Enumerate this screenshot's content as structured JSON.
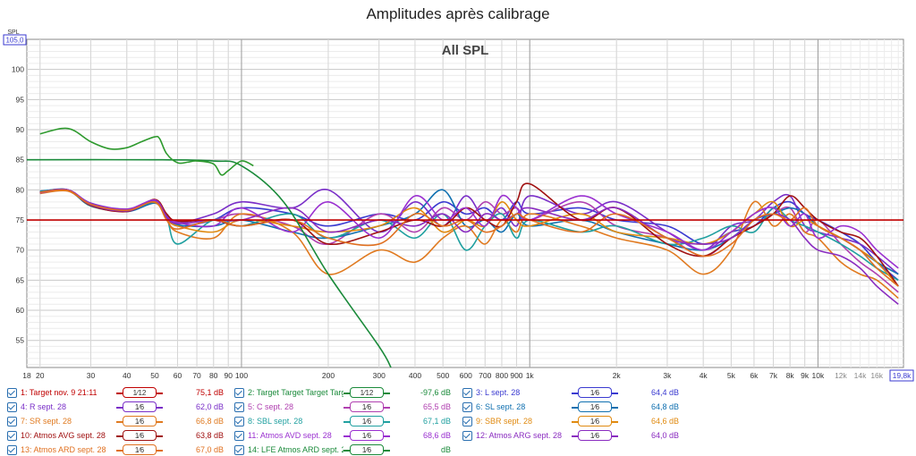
{
  "title": "Amplitudes après calibrage",
  "chart_data": {
    "type": "line",
    "title": "All SPL",
    "ylabel": "SPL",
    "xscale": "log",
    "xlim": [
      18,
      19800
    ],
    "ylim": [
      50.5,
      105
    ],
    "y_top_readout": "105,0",
    "x_right_readout": "19,8k",
    "yticks": [
      55,
      60,
      65,
      70,
      75,
      80,
      85,
      90,
      95,
      100
    ],
    "xticks": [
      {
        "v": 18,
        "t": "18"
      },
      {
        "v": 20,
        "t": "20"
      },
      {
        "v": 30,
        "t": "30"
      },
      {
        "v": 40,
        "t": "40"
      },
      {
        "v": 50,
        "t": "50"
      },
      {
        "v": 60,
        "t": "60"
      },
      {
        "v": 70,
        "t": "70"
      },
      {
        "v": 80,
        "t": "80"
      },
      {
        "v": 90,
        "t": "90"
      },
      {
        "v": 100,
        "t": "100"
      },
      {
        "v": 200,
        "t": "200"
      },
      {
        "v": 300,
        "t": "300"
      },
      {
        "v": 400,
        "t": "400"
      },
      {
        "v": 500,
        "t": "500"
      },
      {
        "v": 600,
        "t": "600"
      },
      {
        "v": 700,
        "t": "700"
      },
      {
        "v": 800,
        "t": "800"
      },
      {
        "v": 900,
        "t": "900"
      },
      {
        "v": 1000,
        "t": "1k"
      },
      {
        "v": 2000,
        "t": "2k"
      },
      {
        "v": 3000,
        "t": "3k"
      },
      {
        "v": 4000,
        "t": "4k"
      },
      {
        "v": 5000,
        "t": "5k"
      },
      {
        "v": 6000,
        "t": "6k"
      },
      {
        "v": 7000,
        "t": "7k"
      },
      {
        "v": 8000,
        "t": "8k"
      },
      {
        "v": 9000,
        "t": "9k"
      },
      {
        "v": 10000,
        "t": "10k"
      },
      {
        "v": 12000,
        "t": "12k"
      },
      {
        "v": 14000,
        "t": "14k"
      },
      {
        "v": 16000,
        "t": "16k"
      }
    ],
    "series": [
      {
        "name": "1: Target nov. 9 21:11",
        "color": "#c00000",
        "x": [
          18,
          19800
        ],
        "y": [
          75,
          75
        ]
      },
      {
        "name": "2: Target Target Target Target 1",
        "color": "#1a8a3a",
        "x": [
          18,
          50,
          80,
          100,
          140,
          200,
          300,
          330
        ],
        "y": [
          85,
          85,
          84.8,
          84,
          78,
          66,
          54,
          50.5
        ]
      },
      {
        "name": "14: LFE Atmos ARD sept. 28",
        "color": "#2e9a2e",
        "x": [
          20,
          25,
          30,
          35,
          40,
          45,
          50,
          52,
          55,
          60,
          65,
          70,
          80,
          85,
          90,
          100,
          110
        ],
        "y": [
          89.3,
          90.2,
          88,
          86.8,
          87,
          88,
          88.8,
          88.5,
          86,
          84.5,
          84.6,
          84.8,
          84.3,
          82.5,
          83.2,
          84.8,
          84
        ]
      },
      {
        "name": "3: L sept. 28",
        "color": "#3a3ad0",
        "x": [
          20,
          25,
          30,
          40,
          50,
          55,
          60,
          80,
          100,
          150,
          200,
          300,
          400,
          500,
          600,
          700,
          800,
          900,
          1000,
          1500,
          2000,
          3000,
          4000,
          5000,
          6000,
          7000,
          8000,
          9000,
          10000,
          12000,
          14000,
          16000,
          19000
        ],
        "y": [
          79.7,
          80,
          77.5,
          76.5,
          78,
          76,
          74,
          75,
          77,
          76,
          74,
          76,
          75,
          78,
          76,
          77,
          75,
          78,
          76,
          77,
          75,
          74,
          71,
          73,
          74,
          77,
          78,
          76,
          75,
          73,
          71,
          68,
          65
        ]
      },
      {
        "name": "4: R sept. 28",
        "color": "#7a2fc8",
        "x": [
          20,
          25,
          30,
          40,
          50,
          55,
          60,
          80,
          100,
          150,
          200,
          300,
          400,
          500,
          600,
          700,
          800,
          900,
          1000,
          1500,
          2000,
          3000,
          4000,
          5000,
          6000,
          7000,
          8000,
          9000,
          10000,
          12000,
          14000,
          16000,
          19000
        ],
        "y": [
          79.5,
          80,
          77.8,
          76.8,
          78.2,
          76,
          74.5,
          76,
          78,
          77,
          80,
          73,
          78,
          74,
          79,
          75,
          77,
          74,
          79,
          76,
          78,
          73,
          70,
          74,
          75,
          78,
          79,
          74,
          73,
          72,
          71,
          69,
          66
        ]
      },
      {
        "name": "5: C sept. 28",
        "color": "#b040b0",
        "x": [
          20,
          25,
          30,
          40,
          50,
          55,
          60,
          80,
          100,
          150,
          200,
          300,
          400,
          500,
          600,
          700,
          800,
          900,
          1000,
          1500,
          2000,
          3000,
          4000,
          5000,
          6000,
          7000,
          8000,
          9000,
          10000,
          12000,
          14000,
          16000,
          19000
        ],
        "y": [
          79.6,
          80,
          77.6,
          76.6,
          78,
          75.5,
          74.5,
          75,
          76,
          74,
          71,
          76,
          73,
          77,
          75,
          78,
          76,
          77,
          75,
          78,
          74,
          72,
          69,
          72,
          74,
          76,
          77,
          73,
          75,
          71,
          68,
          66,
          63
        ]
      },
      {
        "name": "6: SL sept. 28",
        "color": "#1070b0",
        "x": [
          20,
          25,
          30,
          40,
          50,
          55,
          60,
          80,
          100,
          150,
          200,
          300,
          400,
          500,
          600,
          700,
          800,
          900,
          1000,
          1500,
          2000,
          3000,
          4000,
          5000,
          6000,
          7000,
          8000,
          9000,
          10000,
          12000,
          14000,
          16000,
          19000
        ],
        "y": [
          79.8,
          79.9,
          77.4,
          76.4,
          77.8,
          75.8,
          74.2,
          74,
          75,
          73,
          72,
          74,
          76,
          80,
          74,
          75,
          73,
          76,
          74,
          75,
          73,
          71,
          70,
          72,
          75,
          76,
          77,
          76,
          74,
          72,
          70,
          68,
          66
        ]
      },
      {
        "name": "7: SR sept. 28",
        "color": "#e07a20",
        "x": [
          20,
          25,
          30,
          40,
          50,
          55,
          60,
          80,
          100,
          150,
          200,
          300,
          400,
          500,
          600,
          700,
          800,
          900,
          1000,
          1500,
          2000,
          3000,
          4000,
          5000,
          6000,
          7000,
          8000,
          9000,
          10000,
          12000,
          14000,
          16000,
          19000
        ],
        "y": [
          79.4,
          79.8,
          77.5,
          76.7,
          77.9,
          75,
          73,
          72,
          76,
          73,
          66,
          70,
          68,
          72,
          74,
          71,
          75,
          73,
          76,
          74,
          72,
          70,
          66,
          70,
          78,
          74,
          76,
          73,
          72,
          68,
          66,
          65,
          62
        ]
      },
      {
        "name": "8: SBL sept. 28",
        "color": "#20a0a0",
        "x": [
          20,
          25,
          30,
          40,
          50,
          55,
          60,
          80,
          100,
          150,
          200,
          300,
          400,
          500,
          600,
          700,
          800,
          900,
          1000,
          1500,
          2000,
          3000,
          4000,
          5000,
          6000,
          7000,
          8000,
          9000,
          10000,
          12000,
          14000,
          16000,
          19000
        ],
        "y": [
          79.7,
          80,
          77.3,
          76.5,
          78,
          75.5,
          71,
          75,
          74,
          76,
          72,
          75,
          72,
          76,
          70,
          74,
          76,
          72,
          75,
          73,
          74,
          71,
          72,
          74,
          73,
          77,
          75,
          74,
          73,
          71,
          69,
          67,
          65
        ]
      },
      {
        "name": "9: SBR sept. 28",
        "color": "#e08a10",
        "x": [
          20,
          25,
          30,
          40,
          50,
          55,
          60,
          80,
          100,
          150,
          200,
          300,
          400,
          500,
          600,
          700,
          800,
          900,
          1000,
          1500,
          2000,
          3000,
          4000,
          5000,
          6000,
          7000,
          8000,
          9000,
          10000,
          12000,
          14000,
          16000,
          19000
        ],
        "y": [
          79.5,
          79.9,
          77.6,
          76.6,
          78.1,
          75.2,
          74,
          73,
          75,
          74,
          73,
          74,
          77,
          73,
          75,
          74,
          78,
          75,
          74,
          76,
          73,
          72,
          71,
          73,
          76,
          78,
          74,
          75,
          74,
          72,
          70,
          68,
          64
        ]
      },
      {
        "name": "10: Atmos AVG sept. 28",
        "color": "#a01010",
        "x": [
          20,
          25,
          30,
          40,
          50,
          55,
          60,
          80,
          100,
          150,
          200,
          300,
          400,
          500,
          600,
          700,
          800,
          900,
          1000,
          1500,
          2000,
          3000,
          4000,
          5000,
          6000,
          7000,
          8000,
          9000,
          10000,
          12000,
          14000,
          16000,
          19000
        ],
        "y": [
          79.6,
          80,
          77.4,
          76.4,
          78.4,
          76,
          74.8,
          75,
          74,
          75,
          71,
          73,
          75,
          74,
          77,
          75,
          74,
          78,
          81,
          75,
          77,
          71,
          69,
          72,
          74,
          76,
          79,
          77,
          75,
          73,
          72,
          69,
          64
        ]
      },
      {
        "name": "11: Atmos AVD sept. 28",
        "color": "#9a30d0",
        "x": [
          20,
          25,
          30,
          40,
          50,
          55,
          60,
          80,
          100,
          150,
          200,
          300,
          400,
          500,
          600,
          700,
          800,
          900,
          1000,
          1500,
          2000,
          3000,
          4000,
          5000,
          6000,
          7000,
          8000,
          9000,
          10000,
          12000,
          14000,
          16000,
          19000
        ],
        "y": [
          79.5,
          80,
          77.7,
          76.8,
          78.3,
          75.6,
          74.6,
          74,
          77,
          73,
          78,
          72,
          79,
          75,
          77,
          74,
          79,
          77,
          75,
          79,
          76,
          73,
          70,
          73,
          76,
          77,
          74,
          76,
          72,
          74,
          73,
          70,
          67
        ]
      },
      {
        "name": "12: Atmos ARG sept. 28",
        "color": "#8a2cc0",
        "x": [
          20,
          25,
          30,
          40,
          50,
          55,
          60,
          80,
          100,
          150,
          200,
          300,
          400,
          500,
          600,
          700,
          800,
          900,
          1000,
          1500,
          2000,
          3000,
          4000,
          5000,
          6000,
          7000,
          8000,
          9000,
          10000,
          12000,
          14000,
          16000,
          19000
        ],
        "y": [
          79.6,
          80,
          77.5,
          76.5,
          78.1,
          75.4,
          74.4,
          75,
          75,
          77,
          73,
          75,
          74,
          76,
          73,
          76,
          75,
          76,
          77,
          75,
          77,
          72,
          71,
          72,
          75,
          76,
          75,
          72,
          70,
          69,
          67,
          64,
          61
        ]
      },
      {
        "name": "13: Atmos ARD sept. 28",
        "color": "#e07020",
        "x": [
          20,
          25,
          30,
          40,
          50,
          55,
          60,
          80,
          100,
          150,
          200,
          300,
          400,
          500,
          600,
          700,
          800,
          900,
          1000,
          1500,
          2000,
          3000,
          4000,
          5000,
          6000,
          7000,
          8000,
          9000,
          10000,
          12000,
          14000,
          16000,
          19000
        ],
        "y": [
          79.6,
          79.9,
          77.6,
          76.6,
          78,
          75,
          73.5,
          75,
          74,
          75,
          72,
          71,
          76,
          74,
          75,
          73,
          74,
          76,
          75,
          73,
          76,
          72,
          69,
          71,
          75,
          76,
          75,
          77,
          74,
          72,
          70,
          67,
          64
        ]
      }
    ]
  },
  "legend": [
    {
      "label": "1: Target nov. 9 21:11",
      "color": "#c00000",
      "smooth": "1⁄12",
      "value": "75,1 dB"
    },
    {
      "label": "2: Target Target Target Target 1",
      "color": "#1a8a3a",
      "smooth": "1⁄12",
      "value": "-97,6 dB"
    },
    {
      "label": "3: L sept. 28",
      "color": "#3a3ad0",
      "smooth": "1⁄6",
      "value": "64,4 dB"
    },
    {
      "label": "4: R sept. 28",
      "color": "#7a2fc8",
      "smooth": "1⁄6",
      "value": "62,0 dB"
    },
    {
      "label": "5: C sept. 28",
      "color": "#b040b0",
      "smooth": "1⁄6",
      "value": "65,5 dB"
    },
    {
      "label": "6: SL sept. 28",
      "color": "#1070b0",
      "smooth": "1⁄6",
      "value": "64,8 dB"
    },
    {
      "label": "7: SR sept. 28",
      "color": "#e07a20",
      "smooth": "1⁄6",
      "value": "66,8 dB"
    },
    {
      "label": "8: SBL sept. 28",
      "color": "#20a0a0",
      "smooth": "1⁄6",
      "value": "67,1 dB"
    },
    {
      "label": "9: SBR sept. 28",
      "color": "#e08a10",
      "smooth": "1⁄6",
      "value": "64,6 dB"
    },
    {
      "label": "10: Atmos AVG sept. 28",
      "color": "#a01010",
      "smooth": "1⁄6",
      "value": "63,8 dB"
    },
    {
      "label": "11: Atmos AVD sept. 28",
      "color": "#9a30d0",
      "smooth": "1⁄6",
      "value": "68,6 dB"
    },
    {
      "label": "12: Atmos ARG sept. 28",
      "color": "#8a2cc0",
      "smooth": "1⁄6",
      "value": "64,0 dB"
    },
    {
      "label": "13: Atmos ARD sept. 28",
      "color": "#e07020",
      "smooth": "1⁄6",
      "value": "67,0 dB"
    },
    {
      "label": "14: LFE Atmos ARD sept. 28",
      "color": "#1a8a3a",
      "smooth": "1⁄6",
      "value": "dB"
    }
  ]
}
